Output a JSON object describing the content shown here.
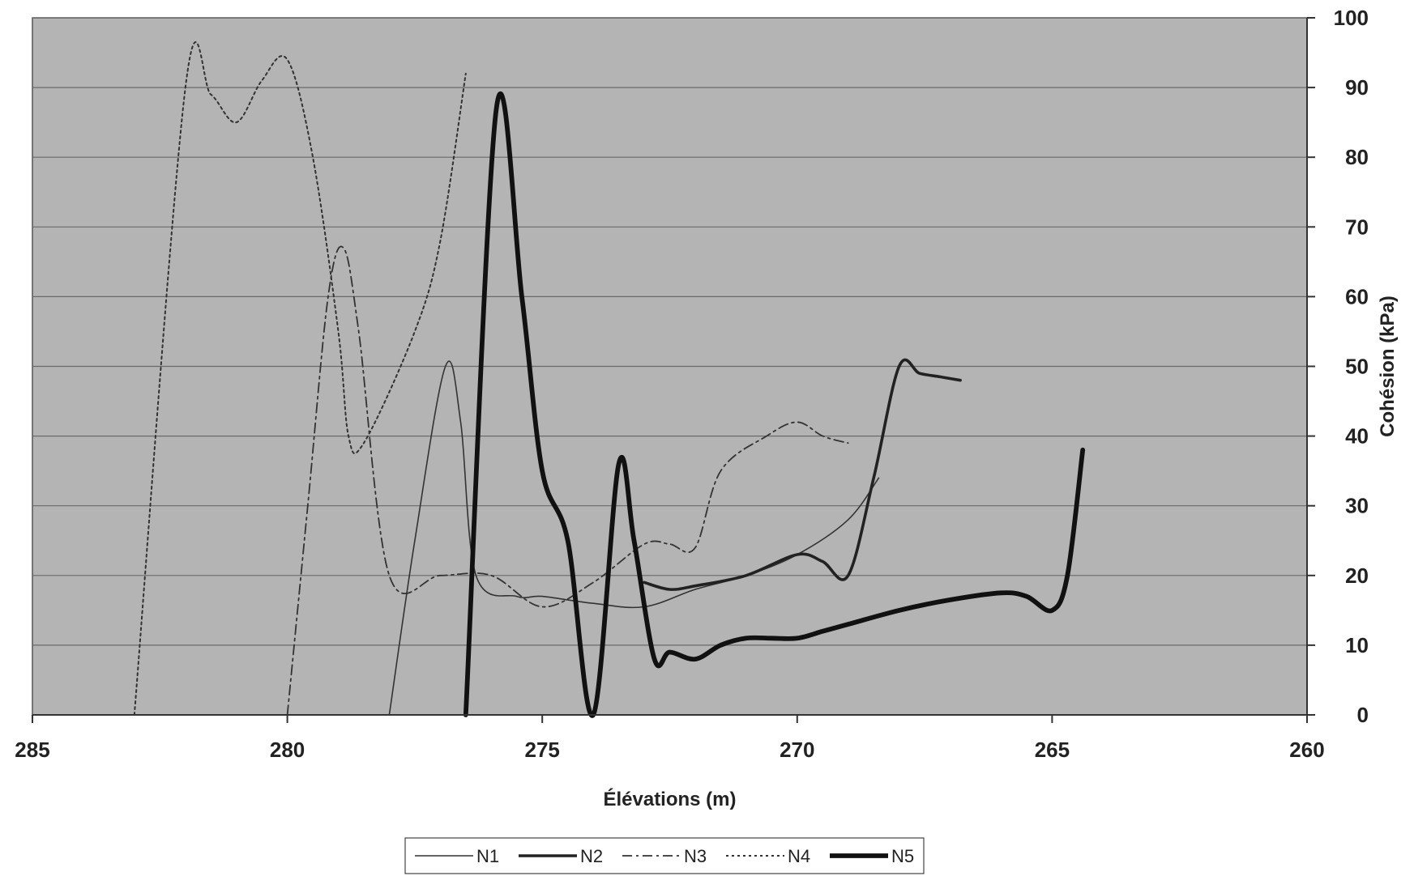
{
  "chart_data": {
    "type": "line",
    "xlabel": "Élévations (m)",
    "ylabel": "Cohésion (kPa)",
    "x_reversed": true,
    "xlim": [
      285,
      260
    ],
    "ylim": [
      0,
      100
    ],
    "x_ticks": [
      285,
      280,
      275,
      270,
      265,
      260
    ],
    "y_ticks": [
      0,
      10,
      20,
      30,
      40,
      50,
      60,
      70,
      80,
      90,
      100
    ],
    "grid": "horizontal",
    "y_axis_side": "right",
    "legend_position": "bottom",
    "plot_background": "#b4b4b4",
    "series": [
      {
        "name": "N1",
        "style": "thin-solid",
        "color": "#333333",
        "x": [
          278.0,
          277.5,
          276.9,
          276.6,
          276.3,
          275.5,
          275.0,
          274.0,
          273.0,
          272.0,
          271.0,
          270.0,
          269.0,
          268.4
        ],
        "y": [
          0,
          25,
          50,
          42,
          20,
          17,
          17,
          16,
          15.5,
          18,
          20,
          23,
          28,
          34
        ]
      },
      {
        "name": "N2",
        "style": "medium-solid",
        "color": "#222222",
        "x": [
          273.0,
          272.5,
          272.0,
          271.0,
          270.0,
          269.5,
          269.0,
          268.5,
          268.0,
          267.6,
          267.2,
          266.8
        ],
        "y": [
          19,
          18,
          18.5,
          20,
          23,
          22,
          20,
          34,
          50,
          49,
          48.5,
          48
        ]
      },
      {
        "name": "N3",
        "style": "dash-dot",
        "color": "#333333",
        "x": [
          280.0,
          279.6,
          279.2,
          278.9,
          278.6,
          278.0,
          277.0,
          276.0,
          275.0,
          274.0,
          273.0,
          272.5,
          272.0,
          271.5,
          270.6,
          270.0,
          269.5,
          269.0
        ],
        "y": [
          0,
          30,
          60,
          67,
          55,
          20,
          20,
          20,
          15.5,
          19,
          24.5,
          24.5,
          24,
          35,
          40,
          42,
          40,
          39
        ]
      },
      {
        "name": "N4",
        "style": "dotted",
        "color": "#333333",
        "x": [
          283.0,
          282.0,
          281.5,
          281.0,
          280.5,
          280.0,
          279.5,
          279.0,
          278.8,
          278.5,
          277.5,
          277.0,
          276.5
        ],
        "y": [
          0,
          90,
          89,
          85,
          91,
          94,
          80,
          55,
          40,
          39,
          55,
          68,
          92
        ]
      },
      {
        "name": "N5",
        "style": "thick-solid",
        "color": "#111111",
        "x": [
          276.5,
          275.9,
          275.4,
          275.0,
          274.5,
          274.0,
          273.5,
          273.2,
          272.8,
          272.5,
          272.0,
          271.5,
          271.0,
          270.5,
          270.0,
          269.5,
          269.0,
          268.0,
          267.0,
          266.0,
          265.5,
          265.0,
          264.7,
          264.4
        ],
        "y": [
          0,
          87,
          60,
          35,
          25,
          0,
          36,
          25,
          8,
          9,
          8,
          10,
          11,
          11,
          11,
          12,
          13,
          15,
          16.5,
          17.5,
          17,
          15,
          20,
          38
        ]
      }
    ]
  }
}
